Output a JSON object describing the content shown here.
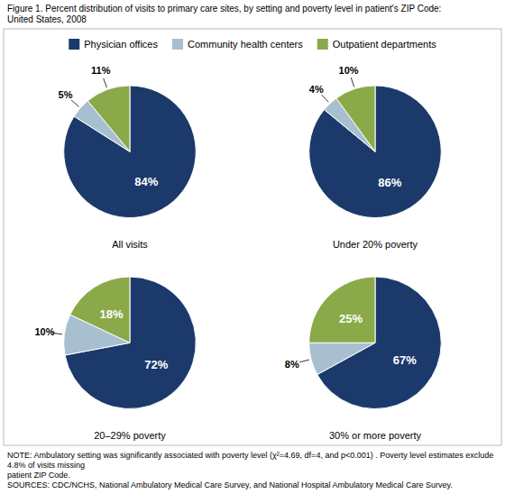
{
  "title": [
    "Figure 1. Percent distribution of visits to primary care sites, by setting and poverty level in patient's ZIP Code:",
    "United States, 2008"
  ],
  "notes": [
    "NOTE: Ambulatory setting was significantly associated with poverty level (χ²=4.69, df=4, and p<0.001) . Poverty level estimates exclude 4.8% of visits missing",
    "patient ZIP Code.",
    "SOURCES: CDC/NCHS, National Ambulatory Medical Care Survey, and National Hospital Ambulatory Medical Care Survey."
  ],
  "chart_data": [
    {
      "type": "pie",
      "title": "All visits",
      "categories": [
        "Physician offices",
        "Community health centers",
        "Outpatient departments"
      ],
      "values": [
        84,
        5,
        11
      ],
      "value_labels": [
        "84%",
        "5%",
        "11%"
      ],
      "colors": [
        "#1b3a6b",
        "#a8bfd0",
        "#8aaa4a"
      ],
      "data_labels": true,
      "legend": "top"
    },
    {
      "type": "pie",
      "title": "Under 20% poverty",
      "categories": [
        "Physician offices",
        "Community health centers",
        "Outpatient departments"
      ],
      "values": [
        86,
        4,
        10
      ],
      "value_labels": [
        "86%",
        "4%",
        "10%"
      ],
      "colors": [
        "#1b3a6b",
        "#a8bfd0",
        "#8aaa4a"
      ],
      "data_labels": true
    },
    {
      "type": "pie",
      "title": "20–29% poverty",
      "categories": [
        "Physician offices",
        "Community health centers",
        "Outpatient departments"
      ],
      "values": [
        72,
        10,
        18
      ],
      "value_labels": [
        "72%",
        "10%",
        "18%"
      ],
      "colors": [
        "#1b3a6b",
        "#a8bfd0",
        "#8aaa4a"
      ],
      "data_labels": true
    },
    {
      "type": "pie",
      "title": "30% or more poverty",
      "categories": [
        "Physician offices",
        "Community health centers",
        "Outpatient departments"
      ],
      "values": [
        67,
        8,
        25
      ],
      "value_labels": [
        "67%",
        "8%",
        "25%"
      ],
      "colors": [
        "#1b3a6b",
        "#a8bfd0",
        "#8aaa4a"
      ],
      "data_labels": true
    }
  ]
}
